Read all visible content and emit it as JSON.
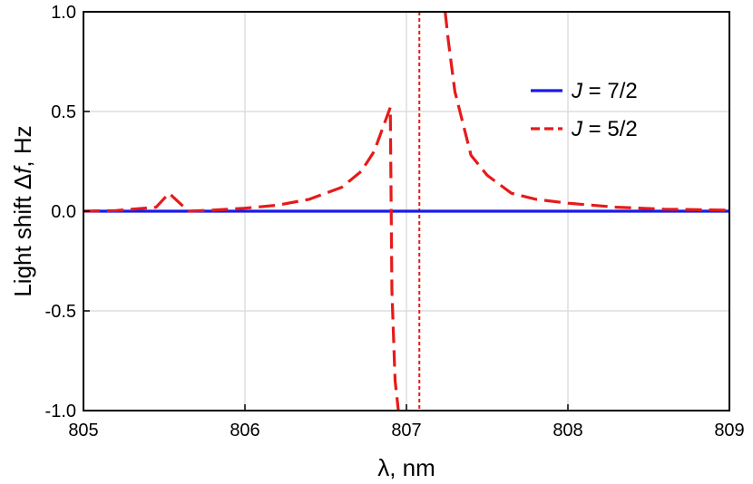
{
  "chart_data": {
    "type": "line",
    "xlabel": {
      "symbol": "λ",
      "rest": ", nm"
    },
    "ylabel": {
      "prefix": "Light shift Δ",
      "symbol": "f",
      "suffix": ", Hz"
    },
    "xlim": [
      805,
      809
    ],
    "ylim": [
      -1.0,
      1.0
    ],
    "xticks": [
      {
        "value": 805,
        "label": "805"
      },
      {
        "value": 806,
        "label": "806"
      },
      {
        "value": 807,
        "label": "807"
      },
      {
        "value": 808,
        "label": "808"
      },
      {
        "value": 809,
        "label": "809"
      }
    ],
    "yticks": [
      {
        "value": -1.0,
        "label": "-1.0"
      },
      {
        "value": -0.5,
        "label": "-0.5"
      },
      {
        "value": 0.0,
        "label": "0.0"
      },
      {
        "value": 0.5,
        "label": "0.5"
      },
      {
        "value": 1.0,
        "label": "1.0"
      }
    ],
    "grid": true,
    "legend_position": "top-right",
    "series": [
      {
        "name": {
          "italic": "J",
          "rest": " = 7/2"
        },
        "color": "#1a1ae6",
        "style": "solid",
        "x": [
          805.0,
          809.0
        ],
        "y": [
          0.0,
          0.0
        ]
      },
      {
        "name": {
          "italic": "J",
          "rest": " = 5/2"
        },
        "color": "#e61a1a",
        "style": "dashed",
        "x": [
          805.0,
          805.2,
          805.45,
          805.53,
          805.65,
          805.8,
          806.0,
          806.2,
          806.4,
          806.6,
          806.72,
          806.8,
          806.9,
          806.91,
          806.93,
          806.95
        ],
        "y": [
          0.0,
          0.003,
          0.02,
          0.09,
          0.0,
          0.005,
          0.015,
          0.03,
          0.06,
          0.12,
          0.2,
          0.3,
          0.52,
          -0.4,
          -0.85,
          -1.0
        ]
      },
      {
        "name": "",
        "color": "#e61a1a",
        "style": "dashed",
        "x": [
          807.24,
          807.26,
          807.3,
          807.4,
          807.5,
          807.65,
          807.8,
          808.0,
          808.3,
          808.6,
          809.0
        ],
        "y": [
          1.0,
          0.85,
          0.6,
          0.28,
          0.18,
          0.09,
          0.06,
          0.04,
          0.02,
          0.01,
          0.005
        ]
      }
    ],
    "vertical_lines": [
      {
        "x": 807.08,
        "color": "#e61a1a",
        "style": "dotted"
      }
    ]
  }
}
